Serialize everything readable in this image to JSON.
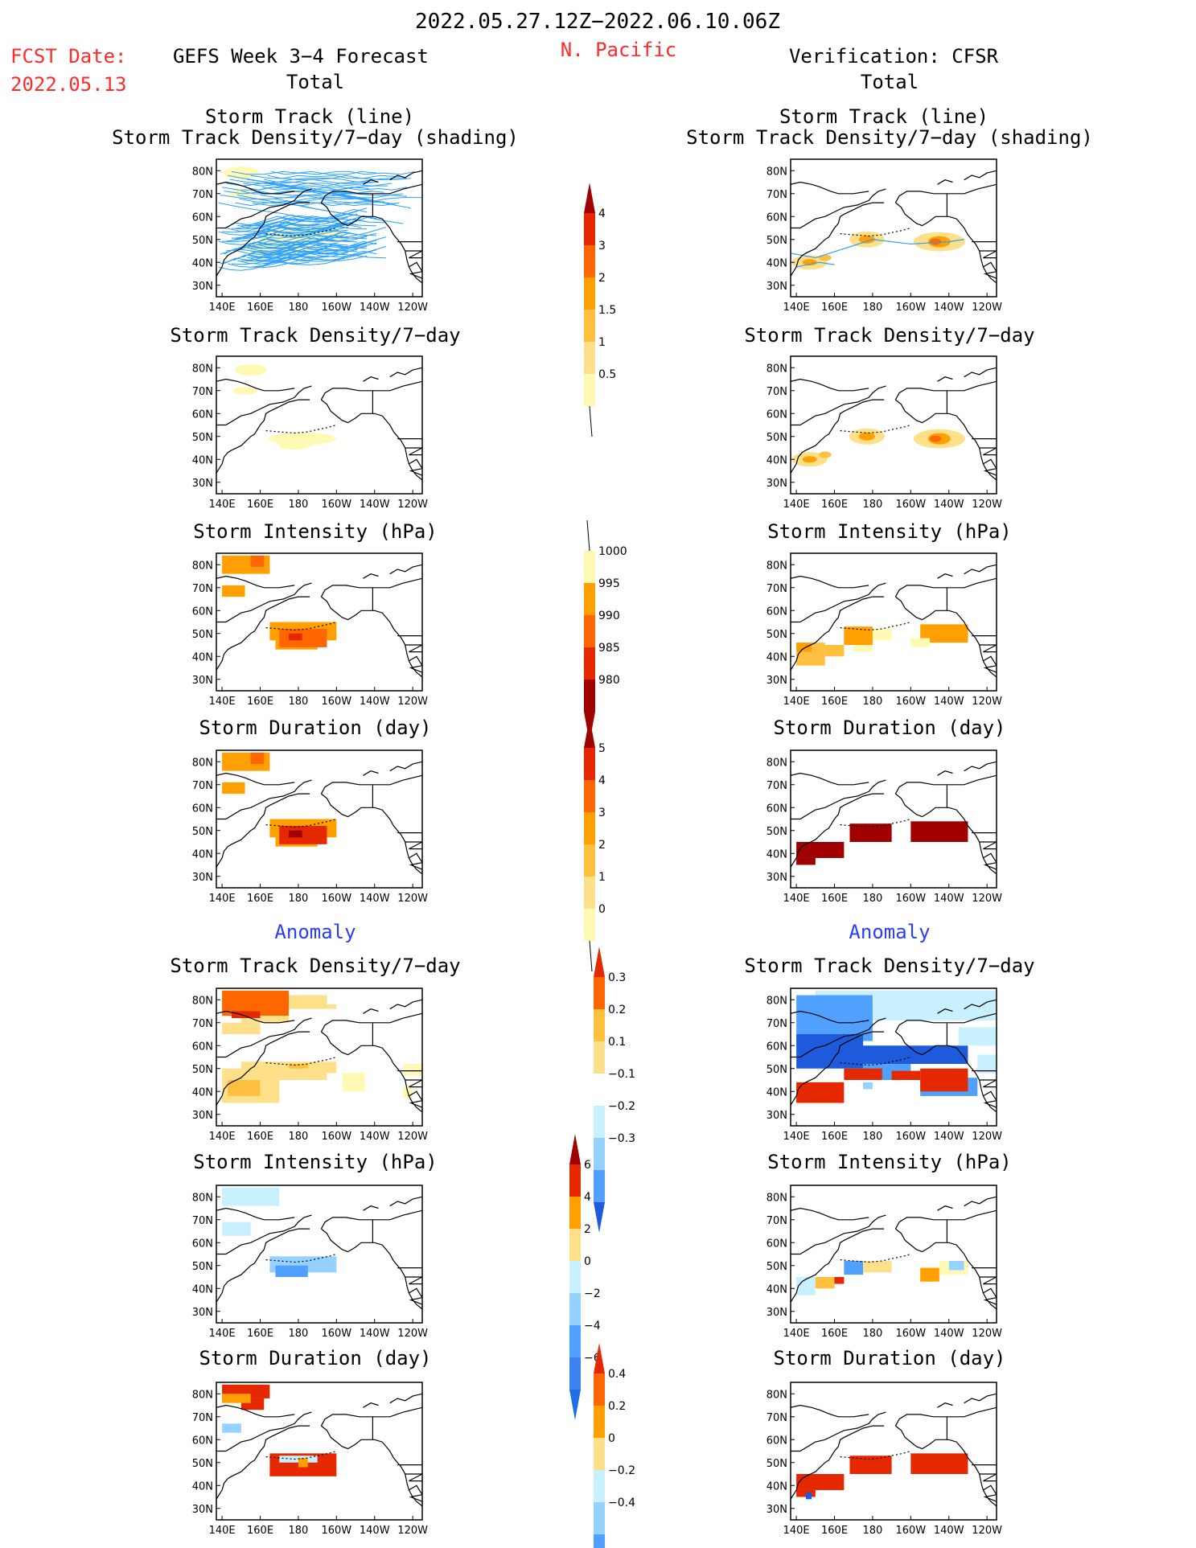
{
  "header": {
    "date_range": "2022.05.27.12Z−2022.06.10.06Z",
    "fcst_date_label": "FCST Date:",
    "fcst_date_value": "2022.05.13",
    "left_title": "GEFS Week 3−4 Forecast",
    "region": "N. Pacific",
    "right_title": "Verification: CFSR",
    "left_total": "Total",
    "right_total": "Total",
    "left_anomaly": "Anomaly",
    "right_anomaly": "Anomaly"
  },
  "panels": {
    "track_line_1": "Storm Track (line)",
    "track_line_2": "Storm Track Density/7−day (shading)",
    "density": "Storm Track Density/7−day",
    "intensity": "Storm Intensity (hPa)",
    "duration": "Storm Duration (day)"
  },
  "axes": {
    "x_ticks": [
      "140E",
      "160E",
      "180",
      "160W",
      "140W",
      "120W"
    ],
    "y_ticks": [
      "80N",
      "70N",
      "60N",
      "50N",
      "40N",
      "30N"
    ]
  },
  "colors": {
    "c1": "#fff9b4",
    "c2": "#ffe08a",
    "c3": "#ffc040",
    "c4": "#ffa000",
    "c5": "#ff6600",
    "c6": "#e62800",
    "c7": "#a00000",
    "b1": "#c8f0ff",
    "b2": "#96d2ff",
    "b3": "#50a0ff",
    "b4": "#1e5adc",
    "track": "#2aa0ff"
  },
  "colorbars": [
    {
      "id": "density",
      "labels": [
        "4",
        "3",
        "2",
        "1.5",
        "1",
        "0.5"
      ]
    },
    {
      "id": "intensity",
      "labels": [
        "1000",
        "995",
        "990",
        "985",
        "980"
      ]
    },
    {
      "id": "duration",
      "labels": [
        "5",
        "4",
        "3",
        "2",
        "1",
        "0"
      ]
    },
    {
      "id": "density_anom",
      "labels": [
        "0.3",
        "0.2",
        "0.1",
        "−0.1",
        "−0.2",
        "−0.3"
      ]
    },
    {
      "id": "intensity_anom",
      "labels": [
        "6",
        "4",
        "2",
        "0",
        "−2",
        "−4",
        "−6"
      ]
    },
    {
      "id": "duration_anom",
      "labels": [
        "0.4",
        "0.2",
        "0",
        "−0.2",
        "−0.4"
      ]
    }
  ],
  "chart_data": {
    "type": "heatmap",
    "domain": {
      "lon_range": [
        "140E",
        "120W"
      ],
      "lat_range": [
        "30N",
        "80N"
      ]
    },
    "maps": [
      "track_line",
      "density",
      "intensity",
      "duration",
      "density_anom",
      "intensity_anom",
      "duration_anom"
    ],
    "sources": [
      "GEFS Week 3−4 Forecast",
      "Verification: CFSR"
    ]
  }
}
